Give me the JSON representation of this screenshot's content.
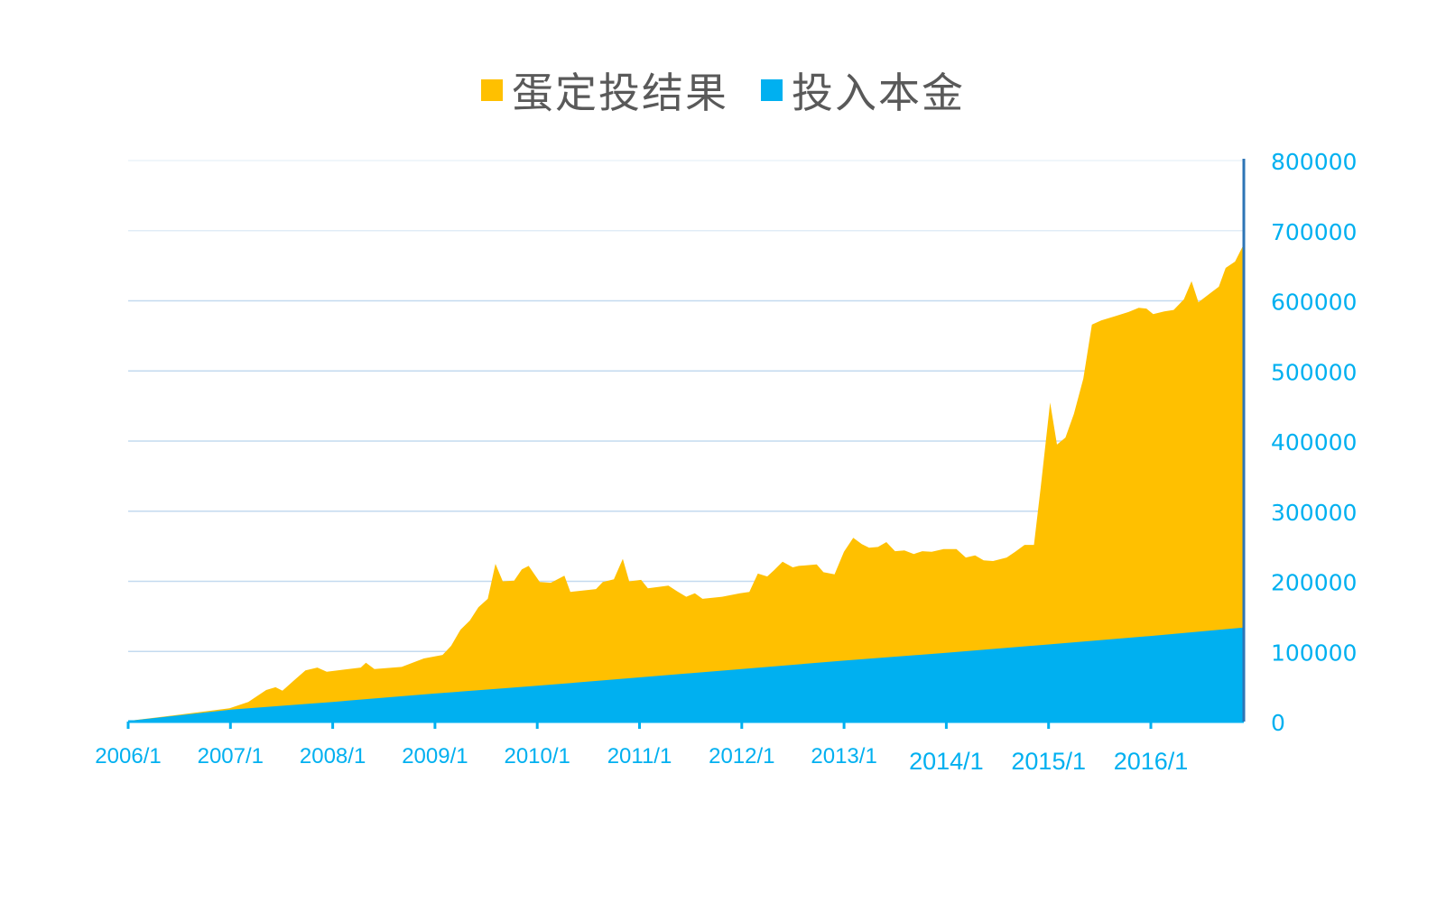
{
  "legend": [
    {
      "label": "蛋定投结果",
      "color": "#FFC000"
    },
    {
      "label": "投入本金",
      "color": "#00B0F0"
    }
  ],
  "colors": {
    "result_area": "#FFC000",
    "principal_area": "#00B0F0",
    "axis_text": "#00B0F0",
    "grid": "#BDD7EE",
    "y_axis_line": "#2E75B6",
    "legend_text": "#595959"
  },
  "chart_data": {
    "type": "area",
    "title": "",
    "xlabel": "",
    "ylabel": "",
    "ylim": [
      0,
      800000
    ],
    "y_axis_position": "right",
    "grid": true,
    "legend_position": "top",
    "y_ticks": [
      "800000",
      "700000",
      "600000",
      "500000",
      "400000",
      "300000",
      "200000",
      "100000",
      "0"
    ],
    "x_ticks": [
      "2006/1",
      "2007/1",
      "2008/1",
      "2009/1",
      "2010/1",
      "2011/1",
      "2012/1",
      "2013/1",
      "2014/1",
      "2015/1",
      "2016/1"
    ],
    "x_unit": "months since 2006/1",
    "series": [
      {
        "name": "蛋定投结果",
        "color": "#FFC000",
        "points": [
          [
            0,
            1000
          ],
          [
            6.1,
            10000
          ],
          [
            11.9,
            19000
          ],
          [
            14.1,
            28000
          ],
          [
            16.2,
            45000
          ],
          [
            17.3,
            49000
          ],
          [
            18.1,
            44000
          ],
          [
            19.4,
            58000
          ],
          [
            20.8,
            73000
          ],
          [
            22.2,
            77000
          ],
          [
            23.3,
            71000
          ],
          [
            27.3,
            77000
          ],
          [
            27.9,
            84000
          ],
          [
            28.9,
            75000
          ],
          [
            32.1,
            78000
          ],
          [
            34.7,
            90000
          ],
          [
            36.9,
            95000
          ],
          [
            37.9,
            108000
          ],
          [
            39.0,
            131000
          ],
          [
            40.1,
            144000
          ],
          [
            41.1,
            163000
          ],
          [
            42.2,
            175000
          ],
          [
            43.1,
            225000
          ],
          [
            43.96,
            200000
          ],
          [
            45.3,
            201000
          ],
          [
            46.2,
            217000
          ],
          [
            47.0,
            222000
          ],
          [
            48.3,
            199000
          ],
          [
            49.6,
            198000
          ],
          [
            51.2,
            208000
          ],
          [
            51.9,
            185000
          ],
          [
            54.9,
            189000
          ],
          [
            55.7,
            199000
          ],
          [
            57.0,
            203000
          ],
          [
            58.05,
            232000
          ],
          [
            58.8,
            200000
          ],
          [
            60.2,
            202000
          ],
          [
            61.0,
            190000
          ],
          [
            63.4,
            194000
          ],
          [
            64.4,
            186000
          ],
          [
            65.5,
            178000
          ],
          [
            66.5,
            183000
          ],
          [
            67.4,
            175000
          ],
          [
            69.7,
            178000
          ],
          [
            71.8,
            183000
          ],
          [
            72.9,
            185000
          ],
          [
            73.9,
            211000
          ],
          [
            75.0,
            207000
          ],
          [
            75.8,
            216000
          ],
          [
            76.8,
            228000
          ],
          [
            78.0,
            220000
          ],
          [
            78.7,
            222000
          ],
          [
            80.8,
            224000
          ],
          [
            81.6,
            213000
          ],
          [
            82.9,
            210000
          ],
          [
            84.0,
            242000
          ],
          [
            85.1,
            262000
          ],
          [
            86.1,
            253000
          ],
          [
            86.96,
            248000
          ],
          [
            88.0,
            249000
          ],
          [
            88.98,
            256000
          ],
          [
            90.0,
            243000
          ],
          [
            91.1,
            244000
          ],
          [
            92.2,
            239000
          ],
          [
            93.2,
            243000
          ],
          [
            94.3,
            242000
          ],
          [
            95.7,
            246000
          ],
          [
            97.2,
            246000
          ],
          [
            98.3,
            234000
          ],
          [
            99.4,
            237000
          ],
          [
            100.4,
            230000
          ],
          [
            101.5,
            229000
          ],
          [
            103.1,
            234000
          ],
          [
            104.1,
            242000
          ],
          [
            105.2,
            252000
          ],
          [
            106.3,
            252000
          ],
          [
            107.1,
            334000
          ],
          [
            108.2,
            455000
          ],
          [
            109.0,
            395000
          ],
          [
            110.0,
            405000
          ],
          [
            111.0,
            439000
          ],
          [
            112.1,
            489000
          ],
          [
            113.1,
            566000
          ],
          [
            114.2,
            572000
          ],
          [
            115.8,
            578000
          ],
          [
            117.4,
            584000
          ],
          [
            118.6,
            590000
          ],
          [
            119.5,
            589000
          ],
          [
            120.3,
            581000
          ],
          [
            121.6,
            585000
          ],
          [
            122.7,
            587000
          ],
          [
            123.9,
            602000
          ],
          [
            124.8,
            628000
          ],
          [
            125.6,
            598000
          ],
          [
            126.9,
            610000
          ],
          [
            128.0,
            620000
          ],
          [
            128.8,
            647000
          ],
          [
            129.9,
            656000
          ],
          [
            130.9,
            680000
          ]
        ]
      },
      {
        "name": "投入本金",
        "color": "#00B0F0",
        "points": [
          [
            0,
            1000
          ],
          [
            12,
            17000
          ],
          [
            24,
            28000
          ],
          [
            36,
            40000
          ],
          [
            48,
            51000
          ],
          [
            60,
            63000
          ],
          [
            72,
            75000
          ],
          [
            84,
            87000
          ],
          [
            96,
            98000
          ],
          [
            108,
            110000
          ],
          [
            120,
            122000
          ],
          [
            130.9,
            134000
          ]
        ]
      }
    ]
  }
}
